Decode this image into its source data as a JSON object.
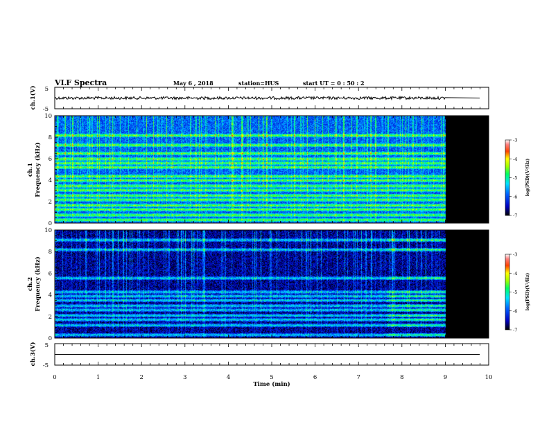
{
  "header": {
    "title": "VLF Spectra",
    "date": "May 6 , 2018",
    "station": "station=HUS",
    "start": "start UT = 0 : 50 : 2"
  },
  "chart_data": {
    "type": "heatmap",
    "xlabel": "Time (min)",
    "xlim": [
      0,
      10
    ],
    "x_ticks": [
      "0",
      "1",
      "2",
      "3",
      "4",
      "5",
      "6",
      "7",
      "8",
      "9",
      "10"
    ],
    "data_end_min": 9,
    "waveform_panels": [
      {
        "id": "ch1",
        "ylabel": "ch.1(V)",
        "ylim": [
          -5,
          5
        ],
        "ticks": [
          "5",
          "-5"
        ],
        "level": 0.0
      },
      {
        "id": "ch3",
        "ylabel": "ch.3(V)",
        "ylim": [
          -5,
          5
        ],
        "ticks": [
          "5",
          "-5"
        ],
        "level": 0.0
      }
    ],
    "spectrogram_panels": [
      {
        "id": "ch1",
        "channel_label": "ch.1",
        "ylabel": "Frequency (kHz)",
        "ylim": [
          0,
          10
        ],
        "y_ticks": [
          "0",
          "2",
          "4",
          "6",
          "8",
          "10"
        ],
        "background_level": -5.9,
        "bands_khz": [
          0.3,
          0.8,
          1.3,
          1.7,
          2.2,
          2.6,
          3.1,
          3.5,
          4.0,
          4.4,
          5.2,
          5.6,
          6.0,
          6.5,
          7.3,
          8.2
        ],
        "colorbar": {
          "label": "log(PSD)(V²/Hz)",
          "range": [
            -7,
            -3
          ],
          "ticks": [
            "-3",
            "-4",
            "-5",
            "-6",
            "-7"
          ]
        }
      },
      {
        "id": "ch2",
        "channel_label": "ch.2",
        "ylabel": "Frequency (kHz)",
        "ylim": [
          0,
          10
        ],
        "y_ticks": [
          "0",
          "2",
          "4",
          "6",
          "8",
          "10"
        ],
        "background_level": -6.6,
        "bands_khz": [
          0.3,
          1.2,
          1.7,
          2.1,
          2.6,
          3.0,
          3.5,
          3.9,
          4.3,
          5.6,
          8.2,
          9.1
        ],
        "colorbar": {
          "label": "log(PSD)(V²/Hz)",
          "range": [
            -7,
            -3
          ],
          "ticks": [
            "-3",
            "-4",
            "-5",
            "-6",
            "-7"
          ]
        }
      }
    ],
    "colormap": [
      "#000080",
      "#0000ff",
      "#0080ff",
      "#00ffff",
      "#00ff80",
      "#80ff00",
      "#ffff00",
      "#ff8000",
      "#ff0000",
      "#ffffff"
    ]
  }
}
